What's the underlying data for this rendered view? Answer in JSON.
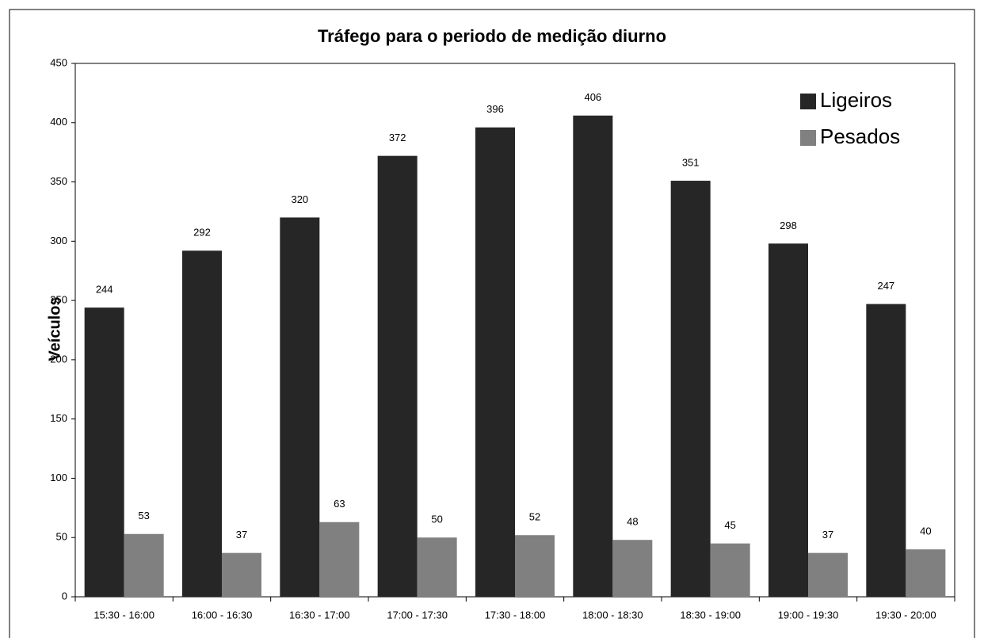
{
  "chart_data": {
    "type": "bar",
    "title": "Tráfego  para o periodo  de medição diurno",
    "y_label": "Veículos",
    "categories": [
      "15:30 - 16:00",
      "16:00 - 16:30",
      "16:30 - 17:00",
      "17:00 - 17:30",
      "17:30 - 18:00",
      "18:00 - 18:30",
      "18:30 - 19:00",
      "19:00 - 19:30",
      "19:30 - 20:00"
    ],
    "series": [
      {
        "name": "Ligeiros",
        "color": "#262626",
        "values": [
          244,
          292,
          320,
          372,
          396,
          406,
          351,
          298,
          247
        ]
      },
      {
        "name": "Pesados",
        "color": "#808080",
        "values": [
          53,
          37,
          63,
          50,
          52,
          48,
          45,
          37,
          40
        ]
      }
    ],
    "ylim": [
      0,
      450
    ],
    "yticks": [
      0,
      50,
      100,
      150,
      200,
      250,
      300,
      350,
      400,
      450
    ],
    "legend": "top-right",
    "grid": false
  }
}
